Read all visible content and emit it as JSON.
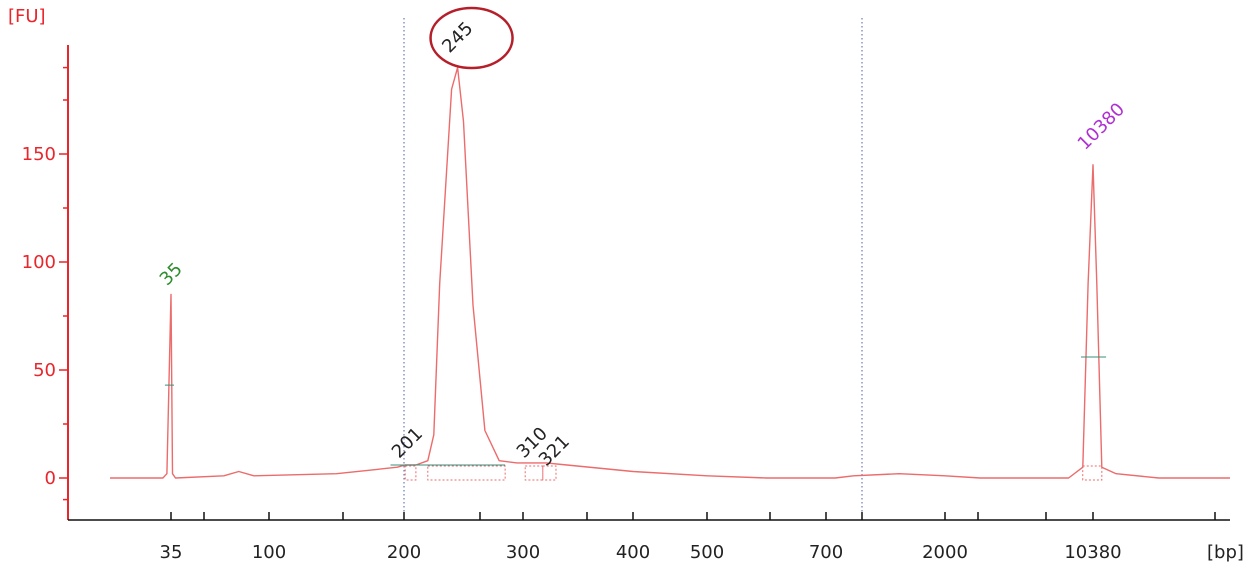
{
  "chart_data": {
    "type": "line",
    "title": "",
    "y_unit": "[FU]",
    "x_unit": "[bp]",
    "ylim": [
      -20,
      205
    ],
    "yticks": [
      0,
      50,
      100,
      150
    ],
    "x_axis_scale": "non-linear (size-calibrated)",
    "xticks": [
      "35",
      "100",
      "200",
      "300",
      "400",
      "500",
      "700",
      "2000",
      "10380"
    ],
    "grid": false,
    "colors": {
      "axis": "#e8262b",
      "trace": "#ec6b6b",
      "marker_line": "#3a8f7b",
      "dotted_guides": "#4d5fa6",
      "highlight_circle": "#b51f2a",
      "label_default": "#222222",
      "label_35": "#2e8b2e",
      "label_10380": "#b02fd2"
    },
    "peaks": [
      {
        "label": "35",
        "color": "#2e8b2e",
        "bp": 35,
        "fu": 85
      },
      {
        "label": "201",
        "color": "#222222",
        "bp": 201,
        "fu": 6
      },
      {
        "label": "245",
        "color": "#222222",
        "bp": 245,
        "fu": 190,
        "highlighted": true
      },
      {
        "label": "310",
        "color": "#222222",
        "bp": 310,
        "fu": 7
      },
      {
        "label": "321",
        "color": "#222222",
        "bp": 321,
        "fu": 7
      },
      {
        "label": "10380",
        "color": "#b02fd2",
        "bp": 10380,
        "fu": 145
      }
    ],
    "trace": [
      {
        "bp": 20,
        "fu": 0
      },
      {
        "bp": 33,
        "fu": 0
      },
      {
        "bp": 34,
        "fu": 2
      },
      {
        "bp": 35,
        "fu": 85
      },
      {
        "bp": 36,
        "fu": 2
      },
      {
        "bp": 38,
        "fu": 0
      },
      {
        "bp": 70,
        "fu": 1
      },
      {
        "bp": 80,
        "fu": 3
      },
      {
        "bp": 90,
        "fu": 1
      },
      {
        "bp": 150,
        "fu": 2
      },
      {
        "bp": 180,
        "fu": 4
      },
      {
        "bp": 195,
        "fu": 5
      },
      {
        "bp": 201,
        "fu": 6
      },
      {
        "bp": 210,
        "fu": 6
      },
      {
        "bp": 220,
        "fu": 8
      },
      {
        "bp": 225,
        "fu": 20
      },
      {
        "bp": 230,
        "fu": 90
      },
      {
        "bp": 240,
        "fu": 180
      },
      {
        "bp": 245,
        "fu": 190
      },
      {
        "bp": 250,
        "fu": 165
      },
      {
        "bp": 258,
        "fu": 80
      },
      {
        "bp": 268,
        "fu": 22
      },
      {
        "bp": 280,
        "fu": 8
      },
      {
        "bp": 295,
        "fu": 7
      },
      {
        "bp": 310,
        "fu": 7
      },
      {
        "bp": 321,
        "fu": 7
      },
      {
        "bp": 340,
        "fu": 6
      },
      {
        "bp": 400,
        "fu": 3
      },
      {
        "bp": 500,
        "fu": 1
      },
      {
        "bp": 600,
        "fu": 0
      },
      {
        "bp": 800,
        "fu": 0
      },
      {
        "bp": 1000,
        "fu": 1
      },
      {
        "bp": 1500,
        "fu": 2
      },
      {
        "bp": 2000,
        "fu": 1
      },
      {
        "bp": 4000,
        "fu": 0
      },
      {
        "bp": 9000,
        "fu": 0
      },
      {
        "bp": 9800,
        "fu": 5
      },
      {
        "bp": 10100,
        "fu": 90
      },
      {
        "bp": 10380,
        "fu": 145
      },
      {
        "bp": 10650,
        "fu": 90
      },
      {
        "bp": 11000,
        "fu": 5
      },
      {
        "bp": 12000,
        "fu": 2
      },
      {
        "bp": 15000,
        "fu": 0
      },
      {
        "bp": 20000,
        "fu": 0
      }
    ]
  }
}
